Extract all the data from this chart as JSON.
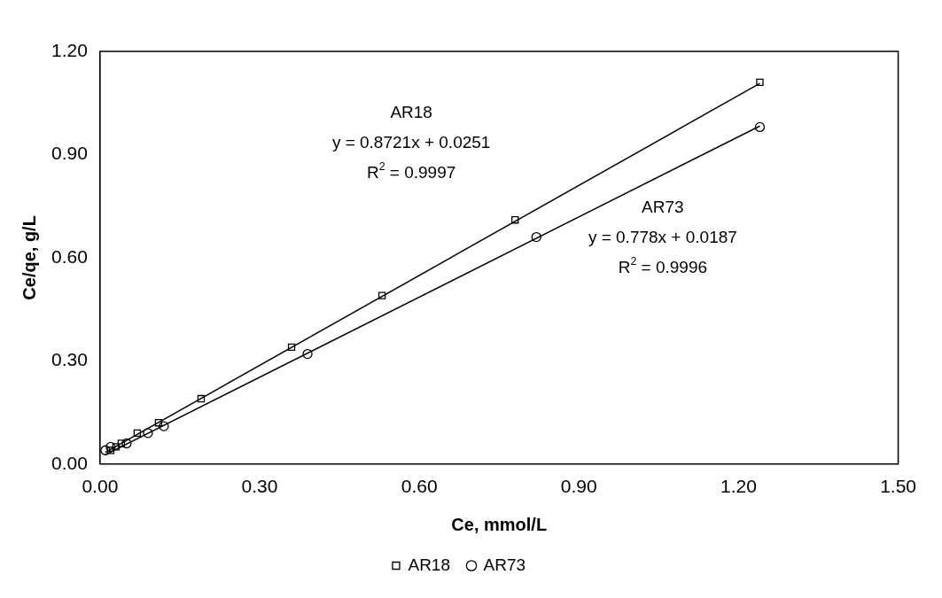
{
  "chart_data": {
    "type": "scatter",
    "xlabel": "Ce, mmol/L",
    "ylabel": "Ce/qe, g/L",
    "xlim": [
      0,
      1.5
    ],
    "ylim": [
      0,
      1.2
    ],
    "xticks": [
      {
        "value": 0,
        "label": "0.00"
      },
      {
        "value": 0.3,
        "label": "0.30"
      },
      {
        "value": 0.6,
        "label": "0.60"
      },
      {
        "value": 0.9,
        "label": "0.90"
      },
      {
        "value": 1.2,
        "label": "1.20"
      },
      {
        "value": 1.5,
        "label": "1.50"
      }
    ],
    "yticks": [
      {
        "value": 0,
        "label": "0.00"
      },
      {
        "value": 0.3,
        "label": "0.30"
      },
      {
        "value": 0.6,
        "label": "0.60"
      },
      {
        "value": 0.9,
        "label": "0.90"
      },
      {
        "value": 1.2,
        "label": "1.20"
      }
    ],
    "grid": false,
    "legend": "bottom",
    "series": [
      {
        "name": "AR18",
        "type": "scatter",
        "marker": "square",
        "color": "#000000",
        "x": [
          0.02,
          0.03,
          0.04,
          0.07,
          0.11,
          0.19,
          0.36,
          0.53,
          0.78,
          1.24
        ],
        "values": [
          0.04,
          0.05,
          0.06,
          0.09,
          0.12,
          0.19,
          0.34,
          0.49,
          0.71,
          1.11
        ]
      },
      {
        "name": "AR73",
        "type": "scatter",
        "marker": "circle",
        "color": "#000000",
        "x": [
          0.01,
          0.02,
          0.05,
          0.09,
          0.12,
          0.39,
          0.82,
          1.24
        ],
        "values": [
          0.04,
          0.05,
          0.06,
          0.09,
          0.11,
          0.32,
          0.66,
          0.98
        ]
      },
      {
        "type": "line",
        "marker": "none",
        "color": "#000000",
        "x": [
          0.01,
          1.24
        ],
        "values": [
          0.034,
          1.107
        ]
      },
      {
        "type": "line",
        "marker": "none",
        "color": "#000000",
        "x": [
          0.01,
          1.24
        ],
        "values": [
          0.027,
          0.983
        ]
      }
    ],
    "annotations": [
      "AR18",
      "y = 0.8721x + 0.0251",
      "R$^{2}$ = 0.9997",
      "AR73",
      "y = 0.778x + 0.0187",
      "R$^{2}$ = 0.9996"
    ]
  }
}
